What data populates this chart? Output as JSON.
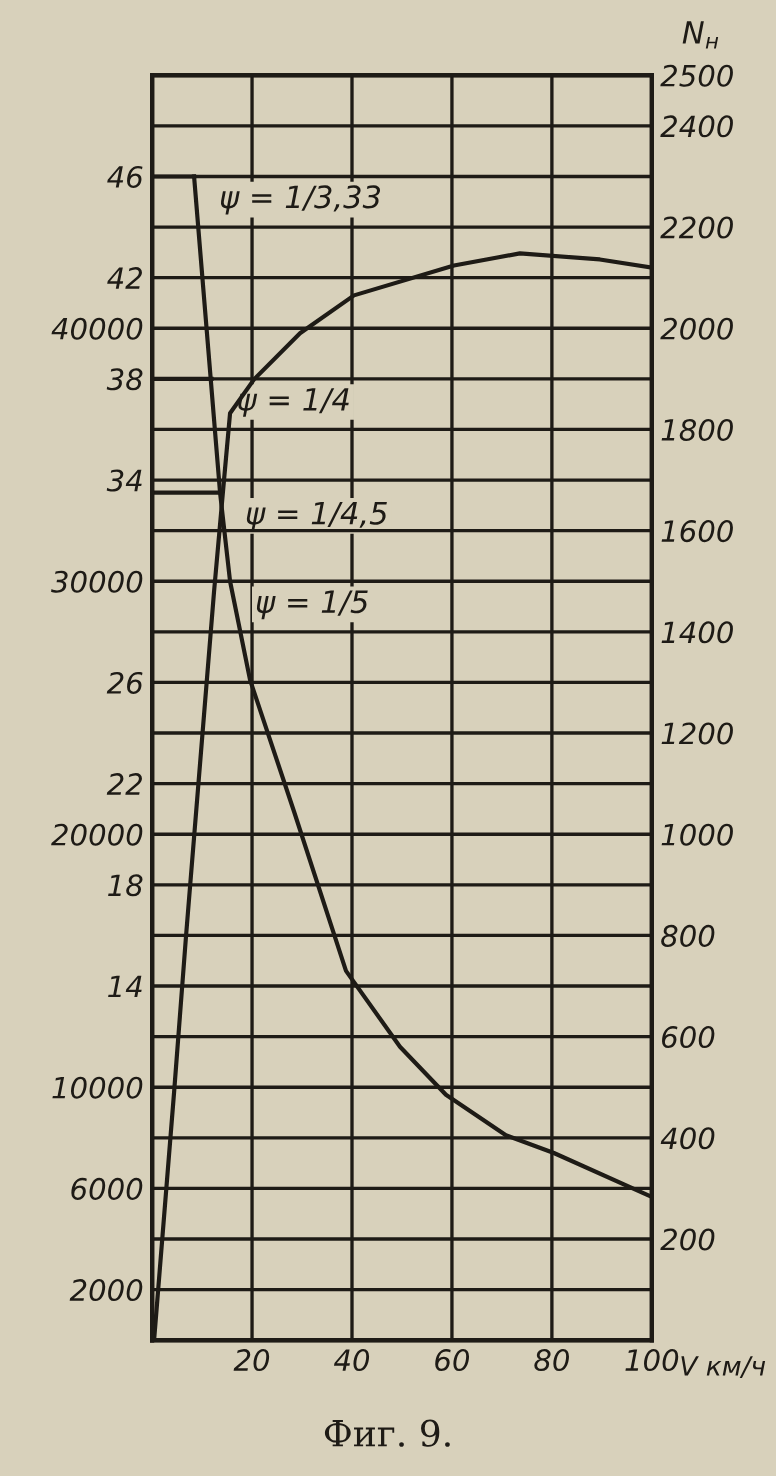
{
  "chart_data": {
    "type": "line",
    "xlabel": "V км/ч",
    "y2label": "N$_{н}$",
    "xlim": [
      0,
      100
    ],
    "xticks": [
      20,
      40,
      60,
      80,
      100
    ],
    "ylim": [
      0,
      50
    ],
    "yticks": [
      14,
      18,
      22,
      26,
      34,
      38,
      42,
      46
    ],
    "y3lim": [
      0,
      50000
    ],
    "y3ticks": [
      2000,
      6000,
      10000,
      20000,
      30000,
      40000
    ],
    "y2lim": [
      0,
      2500
    ],
    "y2ticks": [
      {
        "value": 100,
        "label": null
      },
      200,
      {
        "value": 300,
        "label": null
      },
      400,
      {
        "value": 500,
        "label": null
      },
      600,
      {
        "value": 700,
        "label": null
      },
      800,
      {
        "value": 900,
        "label": null
      },
      1000,
      {
        "value": 1100,
        "label": null
      },
      1200,
      {
        "value": 1300,
        "label": null
      },
      1400,
      {
        "value": 1500,
        "label": null
      },
      1600,
      {
        "value": 1700,
        "label": null
      },
      1800,
      {
        "value": 1900,
        "label": null
      },
      2000,
      {
        "value": 2100,
        "label": null
      },
      2200,
      {
        "value": 2300,
        "label": null
      },
      2400,
      2500
    ],
    "grid": true,
    "line_style": "solid",
    "marker": "none",
    "series": [
      {
        "color": "#1e1b16",
        "x": [
          8.4,
          13.6,
          15.6,
          19.6,
          28.4,
          38.8,
          49.6,
          58.8,
          70.8,
          80.4,
          99.6
        ],
        "values": [
          46,
          33.5,
          30,
          26.1,
          20.9,
          14.6,
          11.6,
          9.7,
          8.1,
          7.4,
          5.7
        ]
      },
      {
        "color": "#1e1b16",
        "x": [
          0,
          8.4
        ],
        "values": [
          46,
          46
        ]
      },
      {
        "color": "#1e1b16",
        "x": [
          0,
          11.9
        ],
        "values": [
          38,
          38
        ]
      },
      {
        "color": "#1e1b16",
        "x": [
          0,
          13.6
        ],
        "values": [
          33.5,
          33.5
        ]
      },
      {
        "color": "#1e1b16",
        "axis": "y2",
        "x": [
          0.4,
          4.4,
          6.8,
          12.4,
          14.4,
          15.6,
          20.4,
          29.6,
          40.4,
          60.4,
          73.6,
          89.6,
          100
        ],
        "values": [
          0,
          490,
          800,
          1480,
          1701,
          1832,
          1899,
          1990,
          2065,
          2124,
          2148,
          2136,
          2120
        ]
      }
    ],
    "annotations": [
      {
        "text": "ψ = 1/3,33",
        "x": 8.4,
        "y": 46
      },
      {
        "text": "ψ = 1/4",
        "x": 11.9,
        "y": 38
      },
      {
        "text": "ψ = 1/4,5",
        "x": 13.6,
        "y": 33.5
      },
      {
        "text": "ψ = 1/5",
        "x": 15.6,
        "y": 30
      },
      "Фиг. 9."
    ]
  }
}
